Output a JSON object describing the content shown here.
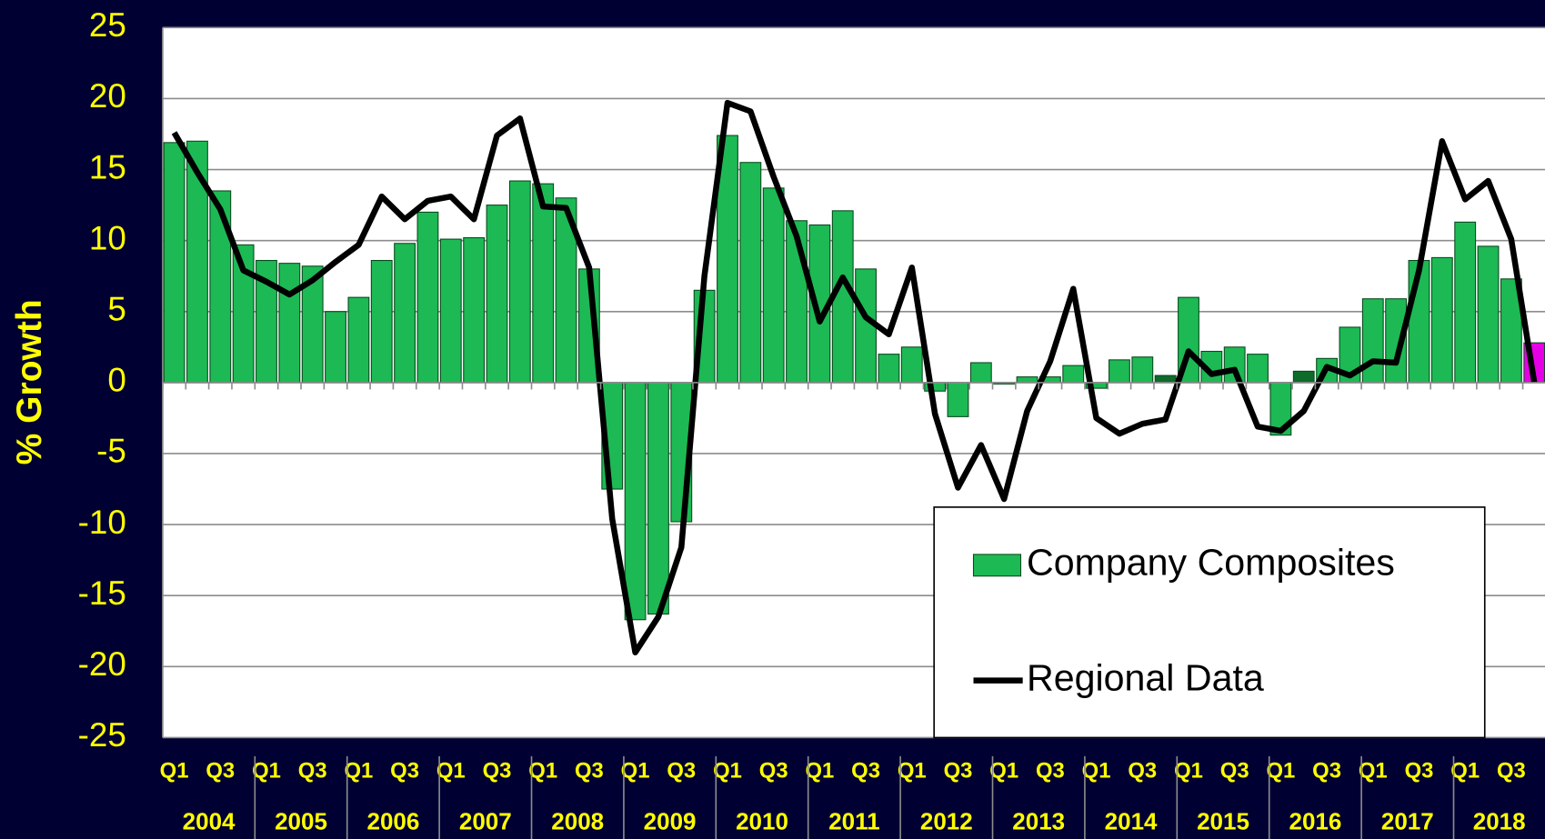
{
  "chart_data": {
    "type": "bar-line",
    "ylabel": "% Growth",
    "categories": [
      "Q1",
      null,
      "Q3",
      null,
      "Q1",
      null,
      "Q3",
      null,
      "Q1",
      null,
      "Q3",
      null,
      "Q1",
      null,
      "Q3",
      null,
      "Q1",
      null,
      "Q3",
      null,
      "Q1",
      null,
      "Q3",
      null,
      "Q1",
      null,
      "Q3",
      null,
      "Q1",
      null,
      "Q3",
      null,
      "Q1",
      null,
      "Q3",
      null,
      "Q1",
      null,
      "Q3",
      null,
      "Q1",
      null,
      "Q3",
      null,
      "Q1",
      null,
      "Q3",
      null,
      "Q1",
      null,
      "Q3",
      null,
      "Q1",
      null,
      "Q3",
      null,
      "Q1",
      null,
      "Q3",
      null
    ],
    "years": [
      "2004",
      "2005",
      "2006",
      "2007",
      "2008",
      "2009",
      "2010",
      "2011",
      "2012",
      "2013",
      "2014",
      "2015",
      "2016",
      "2017",
      "2018"
    ],
    "ylim": [
      -25,
      25
    ],
    "yticks": [
      25,
      20,
      15,
      10,
      5,
      0,
      -5,
      -10,
      -15,
      -20,
      -25
    ],
    "grid": true,
    "series": [
      {
        "name": "Company Composites",
        "type": "bar",
        "color": "#1db954",
        "colors": [
          "#1db954",
          "#1db954",
          "#1db954",
          "#1db954",
          "#1db954",
          "#1db954",
          "#1db954",
          "#1db954",
          "#1db954",
          "#1db954",
          "#1db954",
          "#1db954",
          "#1db954",
          "#1db954",
          "#1db954",
          "#1db954",
          "#1db954",
          "#1db954",
          "#1db954",
          "#1db954",
          "#1db954",
          "#1db954",
          "#1db954",
          "#1db954",
          "#1db954",
          "#1db954",
          "#1db954",
          "#1db954",
          "#1db954",
          "#1db954",
          "#1db954",
          "#1db954",
          "#1db954",
          "#1db954",
          "#1db954",
          "#1db954",
          "#1db954",
          "#1db954",
          "#1db954",
          "#1db954",
          "#1db954",
          "#1db954",
          "#1db954",
          "#0e6b2a",
          "#1db954",
          "#1db954",
          "#1db954",
          "#1db954",
          "#1db954",
          "#0e6b2a",
          "#1db954",
          "#1db954",
          "#1db954",
          "#1db954",
          "#1db954",
          "#1db954",
          "#1db954",
          "#1db954",
          "#1db954",
          "#e600e6"
        ],
        "values": [
          16.9,
          17.0,
          13.5,
          9.7,
          8.6,
          8.4,
          8.2,
          5.0,
          6.0,
          8.6,
          9.8,
          12.0,
          10.1,
          10.2,
          12.5,
          14.2,
          14.0,
          13.0,
          8.0,
          -7.5,
          -16.7,
          -16.3,
          -9.8,
          6.5,
          17.4,
          15.5,
          13.7,
          11.4,
          11.1,
          12.1,
          8.0,
          2.0,
          2.5,
          -0.6,
          -2.4,
          1.4,
          -0.1,
          0.4,
          0.4,
          1.2,
          -0.4,
          1.6,
          1.8,
          0.5,
          6.0,
          2.2,
          2.5,
          2.0,
          -3.7,
          0.8,
          1.7,
          3.9,
          5.9,
          5.9,
          8.6,
          8.8,
          11.3,
          9.6,
          7.3,
          2.8
        ]
      },
      {
        "name": "Regional Data",
        "type": "line",
        "color": "#000000",
        "values": [
          17.6,
          14.8,
          12.2,
          7.9,
          7.1,
          6.2,
          7.2,
          8.5,
          9.7,
          13.1,
          11.5,
          12.8,
          13.1,
          11.5,
          17.4,
          18.6,
          12.4,
          12.3,
          8.1,
          -9.6,
          -19.0,
          -16.5,
          -11.6,
          7.5,
          19.7,
          19.1,
          14.5,
          10.3,
          4.3,
          7.4,
          4.6,
          3.4,
          8.1,
          -2.2,
          -7.4,
          -4.4,
          -8.2,
          -2.0,
          1.5,
          6.6,
          -2.5,
          -3.6,
          -2.9,
          -2.6,
          2.2,
          0.6,
          0.9,
          -3.1,
          -3.4,
          -2.0,
          1.1,
          0.5,
          1.5,
          1.4,
          7.9,
          17.0,
          12.9,
          14.2,
          10.1,
          0.0
        ]
      }
    ]
  }
}
